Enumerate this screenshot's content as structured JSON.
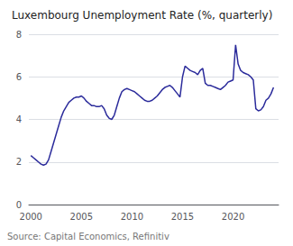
{
  "chart_data": {
    "type": "line",
    "title": "Luxembourg Unemployment Rate (%, quarterly)",
    "annotations": [
      "Source: Capital Economics, Refinitiv"
    ],
    "color": "#2b2b9b",
    "x": [
      2000.0,
      2000.25,
      2000.5,
      2000.75,
      2001.0,
      2001.25,
      2001.5,
      2001.75,
      2002.0,
      2002.25,
      2002.5,
      2002.75,
      2003.0,
      2003.25,
      2003.5,
      2003.75,
      2004.0,
      2004.25,
      2004.5,
      2004.75,
      2005.0,
      2005.25,
      2005.5,
      2005.75,
      2006.0,
      2006.25,
      2006.5,
      2006.75,
      2007.0,
      2007.25,
      2007.5,
      2007.75,
      2008.0,
      2008.25,
      2008.5,
      2008.75,
      2009.0,
      2009.25,
      2009.5,
      2009.75,
      2010.0,
      2010.25,
      2010.5,
      2010.75,
      2011.0,
      2011.25,
      2011.5,
      2011.75,
      2012.0,
      2012.25,
      2012.5,
      2012.75,
      2013.0,
      2013.25,
      2013.5,
      2013.75,
      2014.0,
      2014.25,
      2014.5,
      2014.75,
      2015.0,
      2015.25,
      2015.5,
      2015.75,
      2016.0,
      2016.25,
      2016.5,
      2016.75,
      2017.0,
      2017.25,
      2017.5,
      2017.75,
      2018.0,
      2018.25,
      2018.5,
      2018.75,
      2019.0,
      2019.25,
      2019.5,
      2019.75,
      2020.0,
      2020.25,
      2020.5,
      2020.75,
      2021.0,
      2021.25,
      2021.5,
      2021.75,
      2022.0,
      2022.25,
      2022.5,
      2022.75,
      2023.0,
      2023.25,
      2023.5,
      2023.75,
      2024.0
    ],
    "values": [
      2.3,
      2.2,
      2.1,
      2.0,
      1.9,
      1.85,
      1.9,
      2.1,
      2.5,
      2.9,
      3.3,
      3.7,
      4.1,
      4.4,
      4.6,
      4.8,
      4.9,
      5.0,
      5.05,
      5.05,
      5.1,
      5.0,
      4.85,
      4.75,
      4.65,
      4.65,
      4.6,
      4.6,
      4.65,
      4.5,
      4.2,
      4.05,
      4.0,
      4.2,
      4.6,
      5.0,
      5.3,
      5.4,
      5.45,
      5.4,
      5.35,
      5.3,
      5.2,
      5.1,
      5.0,
      4.9,
      4.85,
      4.85,
      4.9,
      5.0,
      5.1,
      5.25,
      5.4,
      5.5,
      5.55,
      5.6,
      5.5,
      5.35,
      5.2,
      5.05,
      6.0,
      6.5,
      6.4,
      6.3,
      6.25,
      6.2,
      6.1,
      6.3,
      6.4,
      5.7,
      5.6,
      5.6,
      5.55,
      5.5,
      5.45,
      5.4,
      5.5,
      5.6,
      5.75,
      5.8,
      5.85,
      7.5,
      6.6,
      6.3,
      6.2,
      6.15,
      6.1,
      6.0,
      5.85,
      4.5,
      4.4,
      4.45,
      4.6,
      4.9,
      5.0,
      5.2,
      5.5
    ],
    "xlim": [
      1999.8,
      2024.5
    ],
    "xticks": [
      2000,
      2005,
      2010,
      2015,
      2020
    ],
    "ylim": [
      0,
      8
    ],
    "yticks": [
      0,
      2,
      4,
      6,
      8
    ],
    "grid": true
  }
}
